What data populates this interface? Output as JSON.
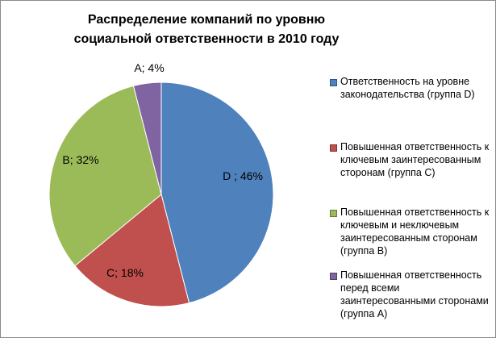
{
  "chart_data": {
    "type": "pie",
    "title": "Распределение компаний по уровню социальной ответственности в 2010 году",
    "slices": [
      {
        "key": "D",
        "label": "D ; 46%",
        "value": 46,
        "color": "#4f81bd",
        "legend": "Ответственность на уровне законодательства (группа D)"
      },
      {
        "key": "C",
        "label": "C; 18%",
        "value": 18,
        "color": "#c0504d",
        "legend": "Повышенная ответственность к ключевым заинтересованным сторонам (группа C)"
      },
      {
        "key": "B",
        "label": "B; 32%",
        "value": 32,
        "color": "#9bbb59",
        "legend": "Повышенная ответственность к ключевым и неключевым заинтересованным сторонам (группа B)"
      },
      {
        "key": "A",
        "label": "A; 4%",
        "value": 4,
        "color": "#8064a2",
        "legend": "Повышенная ответственность перед всеми заинтересованными сторонами (группа A)"
      }
    ],
    "start_angle_deg": 0,
    "direction": "clockwise",
    "legend_position": "right"
  }
}
